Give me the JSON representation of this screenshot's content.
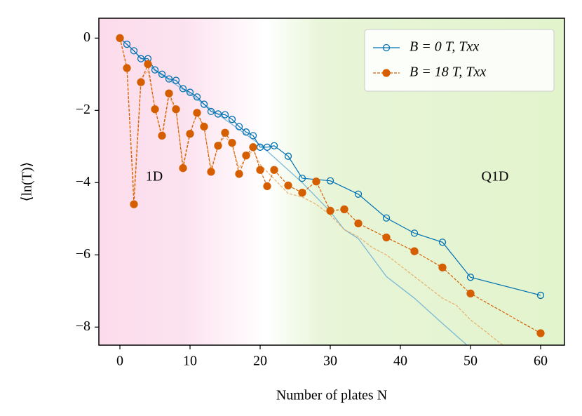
{
  "chart_data": {
    "type": "line",
    "xlabel": "Number of plates N",
    "ylabel": "⟨ln(T)⟩",
    "annotations": [
      "1D",
      "Q1D"
    ],
    "xlim": [
      -3,
      63.4
    ],
    "ylim": [
      -8.5,
      0.55
    ],
    "xticks": [
      0,
      10,
      20,
      30,
      40,
      50,
      60
    ],
    "yticks": [
      0,
      {
        "value": -2,
        "label": "−2"
      },
      {
        "value": -4,
        "label": "−4"
      },
      {
        "value": -6,
        "label": "−6"
      },
      {
        "value": -8,
        "label": "−8"
      }
    ],
    "legend": "upper right",
    "series": [
      {
        "name": "B = 0 T, Txx",
        "color": "#0072b2",
        "marker": "open",
        "dash": false,
        "x": [
          0,
          1,
          2,
          3,
          4,
          5,
          6,
          7,
          8,
          9,
          10,
          11,
          12,
          13,
          14,
          15,
          16,
          17,
          18,
          19,
          20,
          21,
          22,
          24,
          26,
          30,
          34,
          38,
          42,
          46,
          50,
          60
        ],
        "values": [
          0,
          -0.17,
          -0.35,
          -0.57,
          -0.57,
          -0.88,
          -1.0,
          -1.13,
          -1.17,
          -1.4,
          -1.5,
          -1.63,
          -1.83,
          -2.03,
          -2.1,
          -2.12,
          -2.25,
          -2.45,
          -2.6,
          -2.7,
          -3.02,
          -3.02,
          -2.98,
          -3.27,
          -3.88,
          -3.95,
          -4.32,
          -4.98,
          -5.4,
          -5.65,
          -6.62,
          -7.12
        ]
      },
      {
        "name": "B = 18 T, Txx",
        "color": "#d55e00",
        "marker": "filled",
        "dash": true,
        "x": [
          0,
          1,
          2,
          3,
          4,
          5,
          6,
          7,
          8,
          9,
          10,
          11,
          12,
          13,
          14,
          15,
          16,
          17,
          18,
          19,
          20,
          21,
          22,
          24,
          26,
          28,
          30,
          32,
          34,
          38,
          42,
          46,
          50,
          60
        ],
        "values": [
          0,
          -0.83,
          -4.6,
          -1.22,
          -0.72,
          -1.97,
          -2.7,
          -1.53,
          -1.97,
          -3.6,
          -2.65,
          -2.07,
          -2.45,
          -3.7,
          -2.98,
          -2.62,
          -2.9,
          -3.76,
          -3.25,
          -3.02,
          -3.65,
          -4.1,
          -3.65,
          -4.08,
          -4.28,
          -3.97,
          -4.78,
          -4.74,
          -5.13,
          -5.52,
          -5.9,
          -6.35,
          -7.07,
          -8.17
        ]
      },
      {
        "color": "#6aaed6",
        "marker": "none",
        "dash": false,
        "x": [
          0,
          5,
          10,
          15,
          20,
          22,
          26,
          30,
          32,
          34,
          38,
          42,
          46,
          49.5
        ],
        "values": [
          0,
          -0.9,
          -1.55,
          -2.25,
          -2.95,
          -3.3,
          -4.0,
          -4.8,
          -5.3,
          -5.55,
          -6.6,
          -7.2,
          -7.9,
          -8.5
        ]
      },
      {
        "color": "#e8a860",
        "marker": "none",
        "dash": true,
        "x": [
          0,
          1,
          2,
          3,
          4,
          5,
          6,
          7,
          8,
          9,
          10,
          11,
          12,
          13,
          14,
          15,
          16,
          17,
          18,
          19,
          20,
          22,
          24,
          26,
          28,
          30,
          32,
          34,
          36,
          38,
          40,
          42,
          44,
          46,
          48,
          50,
          52,
          54.6
        ],
        "values": [
          0,
          -0.8,
          -4.3,
          -1.1,
          -0.9,
          -1.9,
          -2.8,
          -1.6,
          -2.0,
          -3.5,
          -2.6,
          -2.1,
          -2.5,
          -3.6,
          -3.0,
          -2.7,
          -3.0,
          -3.6,
          -3.3,
          -3.1,
          -3.5,
          -3.9,
          -4.3,
          -4.4,
          -4.6,
          -4.9,
          -5.3,
          -5.5,
          -5.8,
          -6.0,
          -6.3,
          -6.6,
          -6.9,
          -7.2,
          -7.4,
          -7.8,
          -8.1,
          -8.5
        ]
      }
    ]
  }
}
